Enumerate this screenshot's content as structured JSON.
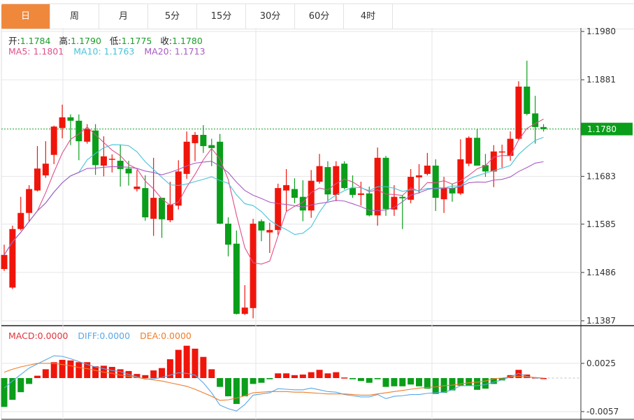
{
  "tabs": [
    {
      "label": "日",
      "active": true
    },
    {
      "label": "周"
    },
    {
      "label": "月"
    },
    {
      "label": "5分"
    },
    {
      "label": "15分"
    },
    {
      "label": "30分"
    },
    {
      "label": "60分"
    },
    {
      "label": "4时"
    }
  ],
  "ohlc_legend": {
    "open_label": "开:",
    "open": "1.1784",
    "high_label": "高:",
    "high": "1.1790",
    "low_label": "低:",
    "low": "1.1775",
    "close_label": "收:",
    "close": "1.1780"
  },
  "ma_legend": {
    "ma5": "MA5: 1.1801",
    "ma10": "MA10: 1.1763",
    "ma20": "MA20: 1.1713"
  },
  "macd_legend": {
    "macd": "MACD:0.0000",
    "diff": "DIFF:0.0000",
    "dea": "DEA:0.0000"
  },
  "price_axis": {
    "ticks": [
      "1.1980",
      "1.1881",
      "1.1683",
      "1.1585",
      "1.1486",
      "1.1387"
    ],
    "current": "1.1780",
    "range": [
      1.1387,
      1.198
    ]
  },
  "macd_axis": {
    "ticks": [
      "0.0025",
      "-0.0057"
    ],
    "range": [
      -0.0057,
      0.0025
    ]
  },
  "colors": {
    "up": "#F0150B",
    "down": "#0A9E1A",
    "ma5": "#E0508A",
    "ma10": "#48C4D8",
    "ma20": "#A95BC4",
    "diff": "#5AA7E6",
    "dea": "#F07D2A",
    "tab_active": "#F0883C",
    "text_green": "#1A9E2A"
  },
  "chart_data": {
    "type": "candlestick",
    "ohlc": [
      [
        1.1493,
        1.1543,
        1.1489,
        1.1522
      ],
      [
        1.1455,
        1.1582,
        1.1452,
        1.1575
      ],
      [
        1.1575,
        1.1641,
        1.1572,
        1.1608
      ],
      [
        1.1608,
        1.1665,
        1.1589,
        1.1657
      ],
      [
        1.1654,
        1.1745,
        1.1652,
        1.1699
      ],
      [
        1.1685,
        1.1755,
        1.168,
        1.1709
      ],
      [
        1.1727,
        1.1787,
        1.1708,
        1.1785
      ],
      [
        1.1782,
        1.183,
        1.1761,
        1.1804
      ],
      [
        1.1804,
        1.181,
        1.1747,
        1.1797
      ],
      [
        1.1797,
        1.181,
        1.1716,
        1.1755
      ],
      [
        1.1754,
        1.179,
        1.175,
        1.178
      ],
      [
        1.1777,
        1.179,
        1.1686,
        1.1706
      ],
      [
        1.1705,
        1.1765,
        1.1683,
        1.1724
      ],
      [
        1.1718,
        1.1728,
        1.1691,
        1.1719
      ],
      [
        1.1715,
        1.1748,
        1.1662,
        1.1698
      ],
      [
        1.1699,
        1.1715,
        1.1664,
        1.1689
      ],
      [
        1.1657,
        1.1696,
        1.1652,
        1.1662
      ],
      [
        1.1659,
        1.1685,
        1.1592,
        1.1599
      ],
      [
        1.1596,
        1.1721,
        1.1561,
        1.1639
      ],
      [
        1.1639,
        1.1639,
        1.1557,
        1.1595
      ],
      [
        1.1593,
        1.1672,
        1.1589,
        1.1625
      ],
      [
        1.1623,
        1.1716,
        1.1615,
        1.1693
      ],
      [
        1.1688,
        1.1775,
        1.1678,
        1.1754
      ],
      [
        1.1751,
        1.1774,
        1.1714,
        1.1768
      ],
      [
        1.1768,
        1.1788,
        1.1731,
        1.1745
      ],
      [
        1.1747,
        1.176,
        1.1704,
        1.1741
      ],
      [
        1.1754,
        1.177,
        1.1585,
        1.1586
      ],
      [
        1.1586,
        1.1599,
        1.1519,
        1.1543
      ],
      [
        1.1545,
        1.1572,
        1.14,
        1.1401
      ],
      [
        1.1401,
        1.146,
        1.1399,
        1.1414
      ],
      [
        1.1413,
        1.1596,
        1.1392,
        1.1586
      ],
      [
        1.1591,
        1.1595,
        1.155,
        1.1572
      ],
      [
        1.1568,
        1.1588,
        1.1526,
        1.1573
      ],
      [
        1.1573,
        1.1668,
        1.1563,
        1.1659
      ],
      [
        1.1654,
        1.1698,
        1.1612,
        1.1665
      ],
      [
        1.1657,
        1.1679,
        1.1628,
        1.1639
      ],
      [
        1.1641,
        1.1675,
        1.1591,
        1.1613
      ],
      [
        1.1613,
        1.1696,
        1.1598,
        1.1674
      ],
      [
        1.1672,
        1.1729,
        1.1668,
        1.1704
      ],
      [
        1.1702,
        1.1714,
        1.1632,
        1.1646
      ],
      [
        1.1645,
        1.1714,
        1.1632,
        1.1704
      ],
      [
        1.1709,
        1.1714,
        1.1656,
        1.1659
      ],
      [
        1.1659,
        1.1685,
        1.1639,
        1.1645
      ],
      [
        1.1645,
        1.1672,
        1.1623,
        1.1648
      ],
      [
        1.1648,
        1.1662,
        1.1601,
        1.1603
      ],
      [
        1.1603,
        1.1742,
        1.1582,
        1.1721
      ],
      [
        1.1721,
        1.1725,
        1.1602,
        1.1616
      ],
      [
        1.1615,
        1.1665,
        1.1602,
        1.1641
      ],
      [
        1.1641,
        1.1645,
        1.1575,
        1.1638
      ],
      [
        1.1635,
        1.1698,
        1.1628,
        1.1682
      ],
      [
        1.1681,
        1.1708,
        1.1648,
        1.1685
      ],
      [
        1.1688,
        1.1731,
        1.1685,
        1.1705
      ],
      [
        1.1705,
        1.1718,
        1.1612,
        1.1639
      ],
      [
        1.1636,
        1.1682,
        1.1608,
        1.1659
      ],
      [
        1.1659,
        1.1668,
        1.1631,
        1.1648
      ],
      [
        1.1648,
        1.1759,
        1.1645,
        1.1718
      ],
      [
        1.1709,
        1.1765,
        1.1704,
        1.1762
      ],
      [
        1.1762,
        1.178,
        1.1705,
        1.1705
      ],
      [
        1.1706,
        1.1729,
        1.1682,
        1.1693
      ],
      [
        1.1693,
        1.1747,
        1.1661,
        1.1734
      ],
      [
        1.1732,
        1.1748,
        1.1701,
        1.1734
      ],
      [
        1.1725,
        1.1775,
        1.1715,
        1.176
      ],
      [
        1.176,
        1.1878,
        1.1758,
        1.1867
      ],
      [
        1.1867,
        1.192,
        1.1808,
        1.1811
      ],
      [
        1.1812,
        1.1848,
        1.175,
        1.1784
      ],
      [
        1.1784,
        1.179,
        1.1775,
        1.178
      ]
    ],
    "macd_hist": [
      -0.0049,
      -0.0037,
      -0.0024,
      -0.001,
      0.0004,
      0.0015,
      0.0027,
      0.0031,
      0.003,
      0.0027,
      0.0027,
      0.002,
      0.0021,
      0.0019,
      0.0015,
      0.0012,
      0.0007,
      0.0005,
      0.0013,
      0.0017,
      0.0032,
      0.0048,
      0.0055,
      0.005,
      0.0036,
      0.0015,
      -0.0015,
      -0.0031,
      -0.0044,
      -0.0031,
      -0.001,
      -0.0008,
      -0.0002,
      0.0008,
      0.0008,
      0.0005,
      0.0006,
      0.001,
      0.0014,
      0.0008,
      0.001,
      0.0001,
      -0.0002,
      -0.0005,
      -0.0008,
      -0.0002,
      -0.0015,
      -0.0014,
      -0.0014,
      -0.0011,
      -0.0014,
      -0.0018,
      -0.0027,
      -0.0025,
      -0.0021,
      -0.0013,
      -0.0013,
      -0.002,
      -0.0018,
      -0.001,
      -0.0004,
      0.0005,
      0.0014,
      0.0006,
      0.0001,
      0.0
    ],
    "diff": [
      -0.0017,
      -0.0005,
      0.0006,
      0.0017,
      0.0024,
      0.0031,
      0.0038,
      0.0037,
      0.0033,
      0.0028,
      0.0023,
      0.0019,
      0.0016,
      0.0013,
      0.0011,
      0.0006,
      0.0002,
      -0.0002,
      -0.0001,
      0.0001,
      0.0005,
      0.0009,
      0.0008,
      0.0005,
      -0.0008,
      -0.0025,
      -0.0046,
      -0.0052,
      -0.0056,
      -0.0045,
      -0.0029,
      -0.0027,
      -0.0025,
      -0.0018,
      -0.0019,
      -0.002,
      -0.002,
      -0.0017,
      -0.002,
      -0.0023,
      -0.0024,
      -0.0028,
      -0.003,
      -0.0032,
      -0.0032,
      -0.0028,
      -0.0035,
      -0.0031,
      -0.003,
      -0.0028,
      -0.0028,
      -0.0026,
      -0.0025,
      -0.0024,
      -0.002,
      -0.0013,
      -0.0013,
      -0.0013,
      -0.0011,
      -0.0007,
      -0.0003,
      0.0002,
      0.0008,
      0.0003,
      0.0,
      0.0
    ],
    "dea": [
      0.001,
      0.0015,
      0.0019,
      0.0022,
      0.0025,
      0.0025,
      0.0025,
      0.0023,
      0.0021,
      0.0018,
      0.0016,
      0.0013,
      0.001,
      0.0008,
      0.0005,
      0.0003,
      0.0001,
      -0.0001,
      -0.0003,
      -0.0005,
      -0.0008,
      -0.0011,
      -0.0014,
      -0.0019,
      -0.0025,
      -0.0031,
      -0.0038,
      -0.0037,
      -0.0034,
      -0.003,
      -0.0025,
      -0.0024,
      -0.0023,
      -0.0023,
      -0.0023,
      -0.0024,
      -0.0024,
      -0.0025,
      -0.0026,
      -0.0027,
      -0.0027,
      -0.0027,
      -0.0028,
      -0.0029,
      -0.0029,
      -0.0027,
      -0.0025,
      -0.0023,
      -0.0021,
      -0.0019,
      -0.0017,
      -0.0016,
      -0.0015,
      -0.0013,
      -0.0012,
      -0.001,
      -0.0008,
      -0.0007,
      -0.0005,
      -0.0001,
      0.0,
      0.0002,
      0.0003,
      0.0002,
      0.0001,
      0.0
    ],
    "ma_periods": [
      5,
      10,
      20
    ]
  }
}
